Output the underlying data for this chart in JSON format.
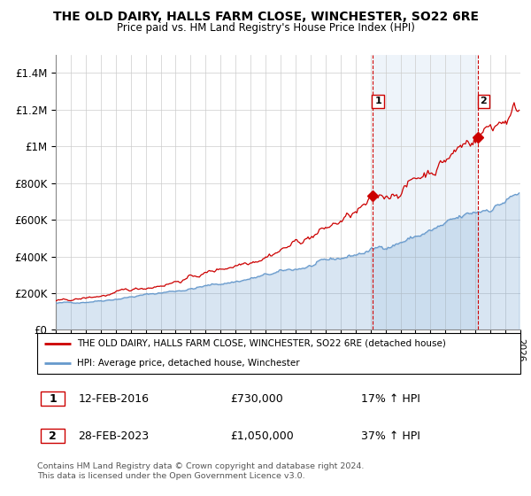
{
  "title": "THE OLD DAIRY, HALLS FARM CLOSE, WINCHESTER, SO22 6RE",
  "subtitle": "Price paid vs. HM Land Registry's House Price Index (HPI)",
  "legend_line1": "THE OLD DAIRY, HALLS FARM CLOSE, WINCHESTER, SO22 6RE (detached house)",
  "legend_line2": "HPI: Average price, detached house, Winchester",
  "footnote1": "Contains HM Land Registry data © Crown copyright and database right 2024.",
  "footnote2": "This data is licensed under the Open Government Licence v3.0.",
  "transaction1_date": "12-FEB-2016",
  "transaction1_price": "£730,000",
  "transaction1_hpi": "17% ↑ HPI",
  "transaction2_date": "28-FEB-2023",
  "transaction2_price": "£1,050,000",
  "transaction2_hpi": "37% ↑ HPI",
  "transaction1_x": 2016.12,
  "transaction1_y": 730000,
  "transaction2_x": 2023.16,
  "transaction2_y": 1050000,
  "xmin": 1995,
  "xmax": 2026,
  "ymin": 0,
  "ymax": 1500000,
  "yticks": [
    0,
    200000,
    400000,
    600000,
    800000,
    1000000,
    1200000,
    1400000
  ],
  "ytick_labels": [
    "£0",
    "£200K",
    "£400K",
    "£600K",
    "£800K",
    "£1M",
    "£1.2M",
    "£1.4M"
  ],
  "line_color_red": "#cc0000",
  "line_color_blue": "#6699cc",
  "fill_color_blue": "#ddeeff",
  "vline_color": "#cc0000",
  "grid_color": "#cccccc"
}
